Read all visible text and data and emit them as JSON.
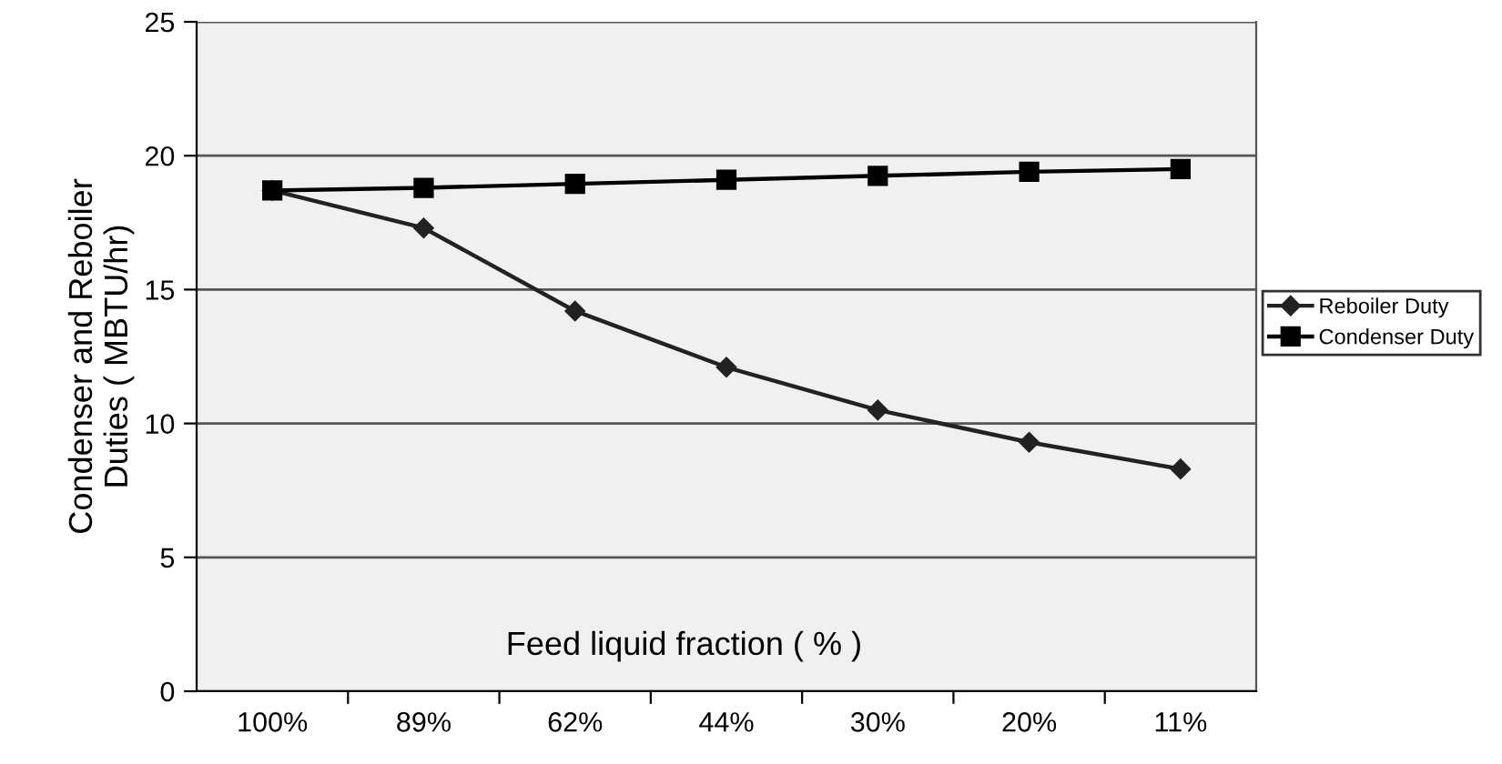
{
  "chart_data": {
    "type": "line",
    "xlabel": "Feed liquid fraction ( % )",
    "ylabel": "Condenser and Reboiler\nDuties ( MBTU/hr)",
    "categories": [
      "100%",
      "89%",
      "62%",
      "44%",
      "30%",
      "20%",
      "11%"
    ],
    "series": [
      {
        "name": "Reboiler Duty",
        "color": "#222222",
        "marker": "diamond",
        "values": [
          18.7,
          17.3,
          14.2,
          12.1,
          10.5,
          9.3,
          8.3
        ]
      },
      {
        "name": "Condenser Duty",
        "color": "#000000",
        "marker": "square",
        "values": [
          18.7,
          18.8,
          18.95,
          19.1,
          19.25,
          19.4,
          19.5
        ]
      }
    ],
    "ylim": [
      0,
      25
    ],
    "yticks": [
      0,
      5,
      10,
      15,
      20,
      25
    ],
    "grid": "y",
    "legend": "right",
    "line_style": "solid"
  }
}
